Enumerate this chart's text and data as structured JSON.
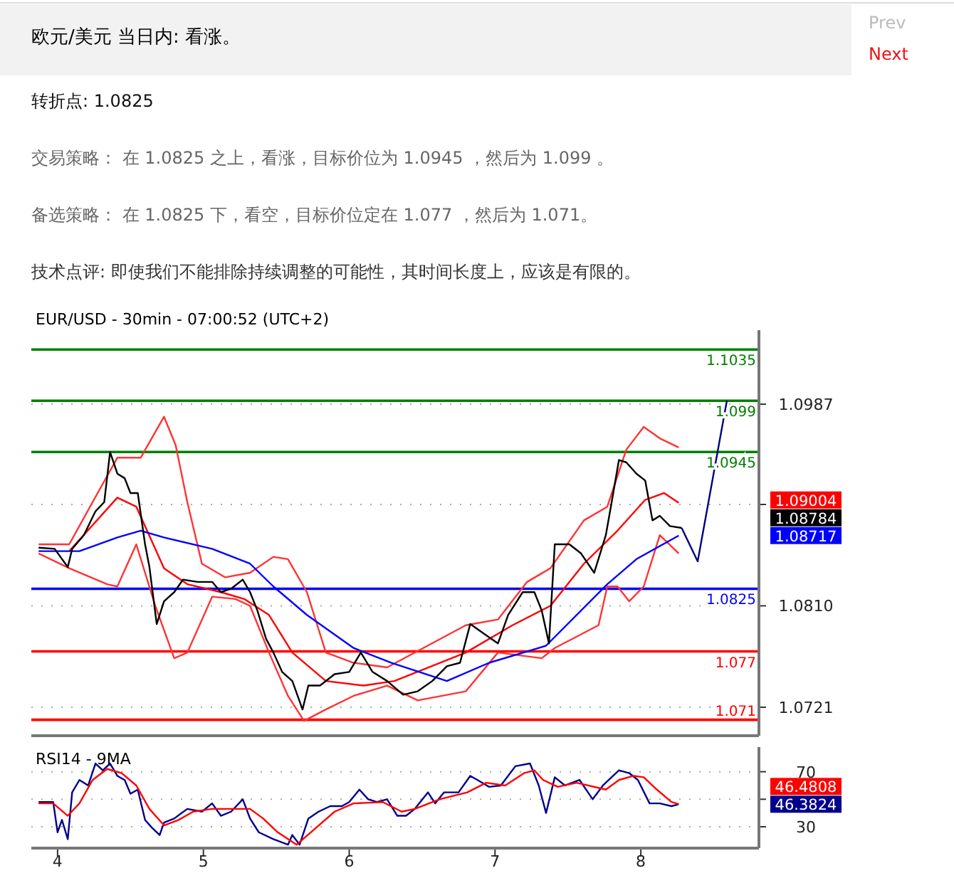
{
  "chart_data": [
    {
      "type": "other",
      "title": "欧元/美元 当日内: 看涨。",
      "annotations": [
        "Prev",
        "Next",
        "转折点: 1.0825",
        "交易策略： 在 1.0825 之上，看涨，目标价位为 1.0945 ，然后为 1.099 。",
        "备选策略： 在 1.0825 下，看空，目标价位定在 1.077 ，然后为 1.071。",
        "技术点评: 即使我们不能排除持续调整的可能性，其时间长度上，应该是有限的。"
      ]
    },
    {
      "type": "line",
      "title": "EUR/USD - 30min - 07:00:52 (UTC+2)",
      "xlim": [
        3.82,
        8.81
      ],
      "ylim": [
        1.0696,
        1.1052
      ],
      "yticks": [
        {
          "value": 1.0721,
          "label": "1.0721"
        },
        {
          "value": 1.081,
          "label": "1.0810"
        },
        {
          "value": 1.0899,
          "label": null
        },
        {
          "value": 1.0987,
          "label": "1.0987"
        }
      ],
      "tick_labels": "y",
      "grid": "y",
      "ref_lines": [
        {
          "axis": "y",
          "value": 1.1035,
          "label": "1.1035",
          "color": "#008000"
        },
        {
          "axis": "y",
          "value": 1.099,
          "label": "1.099",
          "color": "#008000"
        },
        {
          "axis": "y",
          "value": 1.0945,
          "label": "1.0945",
          "color": "#008000"
        },
        {
          "axis": "y",
          "value": 1.0825,
          "label": "1.0825",
          "color": "#0000ff"
        },
        {
          "axis": "y",
          "value": 1.077,
          "label": "1.077",
          "color": "#ff0000"
        },
        {
          "axis": "y",
          "value": 1.071,
          "label": "1.071",
          "color": "#ff0000"
        }
      ],
      "annotations": [
        "1.09004",
        "1.08784",
        "1.08717"
      ],
      "series": [
        {
          "color": "#ff3333",
          "x": [
            3.87,
            4.08,
            4.24,
            4.41,
            4.57,
            4.73,
            4.81,
            4.89,
            4.99,
            5.15,
            5.32,
            5.48,
            5.58,
            5.71,
            5.84,
            6.03,
            6.26,
            6.8,
            7.02,
            7.22,
            7.38,
            7.61,
            7.77,
            7.9,
            8.02,
            8.13,
            8.26
          ],
          "values": [
            1.0864,
            1.0864,
            1.0901,
            1.094,
            1.094,
            1.0976,
            1.0951,
            1.0901,
            1.0847,
            1.0835,
            1.0839,
            1.0853,
            1.0851,
            1.0822,
            1.0769,
            1.076,
            1.0756,
            1.0793,
            1.0798,
            1.0831,
            1.0843,
            1.0885,
            1.0897,
            1.0947,
            1.0967,
            1.0957,
            1.0949
          ]
        },
        {
          "color": "#ff3333",
          "x": [
            3.87,
            4.08,
            4.34,
            4.41,
            4.54,
            4.67,
            4.8,
            4.89,
            5.06,
            5.22,
            5.32,
            5.45,
            5.58,
            5.69,
            5.84,
            6.03,
            6.26,
            6.47,
            6.8,
            7.02,
            7.32,
            7.41,
            7.71,
            7.77,
            7.84,
            7.92,
            8.02,
            8.13,
            8.26
          ],
          "values": [
            1.0856,
            1.0843,
            1.0829,
            1.0827,
            1.0864,
            1.081,
            1.0764,
            1.0769,
            1.0818,
            1.0816,
            1.081,
            1.0769,
            1.0731,
            1.0709,
            1.0719,
            1.0731,
            1.074,
            1.0727,
            1.0735,
            1.0769,
            1.0764,
            1.0773,
            1.0793,
            1.0827,
            1.0827,
            1.0814,
            1.0827,
            1.0872,
            1.0856
          ]
        },
        {
          "color": "#ff0000",
          "x": [
            4.08,
            4.41,
            4.54,
            4.73,
            4.89,
            5.12,
            5.28,
            5.45,
            5.61,
            5.84,
            6.1,
            6.31,
            6.8,
            7.12,
            7.38,
            7.61,
            7.84,
            8.03,
            8.16,
            8.26
          ],
          "values": [
            1.0858,
            1.0905,
            1.0897,
            1.0843,
            1.0829,
            1.0822,
            1.0816,
            1.0802,
            1.0769,
            1.0744,
            1.074,
            1.0744,
            1.0769,
            1.0793,
            1.081,
            1.0847,
            1.0876,
            1.0903,
            1.0909,
            1.09004
          ]
        },
        {
          "color": "#0000ff",
          "x": [
            3.87,
            4.15,
            4.41,
            4.57,
            4.73,
            5.06,
            5.32,
            5.48,
            5.71,
            6.03,
            6.29,
            6.67,
            6.96,
            7.35,
            7.77,
            7.97,
            8.26
          ],
          "values": [
            1.0858,
            1.0858,
            1.087,
            1.0876,
            1.087,
            1.086,
            1.0847,
            1.0827,
            1.0802,
            1.0773,
            1.076,
            1.0744,
            1.076,
            1.0775,
            1.0829,
            1.0851,
            1.08717
          ]
        },
        {
          "color": "#000000",
          "x": [
            3.87,
            3.98,
            4.07,
            4.1,
            4.18,
            4.26,
            4.32,
            4.36,
            4.41,
            4.46,
            4.5,
            4.55,
            4.6,
            4.63,
            4.68,
            4.73,
            4.8,
            4.86,
            4.96,
            5.06,
            5.12,
            5.19,
            5.27,
            5.32,
            5.37,
            5.43,
            5.48,
            5.54,
            5.61,
            5.68,
            5.72,
            5.8,
            5.9,
            6.0,
            6.08,
            6.16,
            6.26,
            6.37,
            6.47,
            6.57,
            6.67,
            6.76,
            6.83,
            6.93,
            7.02,
            7.09,
            7.19,
            7.27,
            7.32,
            7.37,
            7.41,
            7.51,
            7.59,
            7.68,
            7.76,
            7.8,
            7.85,
            7.9,
            7.97,
            8.03,
            8.08,
            8.13,
            8.2,
            8.28
          ],
          "values": [
            1.0861,
            1.086,
            1.0844,
            1.086,
            1.0872,
            1.0893,
            1.0901,
            1.0945,
            1.0926,
            1.0922,
            1.0909,
            1.0909,
            1.0864,
            1.0844,
            1.0794,
            1.0814,
            1.0822,
            1.0833,
            1.0831,
            1.0831,
            1.0822,
            1.0825,
            1.0833,
            1.0822,
            1.0806,
            1.0781,
            1.0769,
            1.0752,
            1.0744,
            1.0719,
            1.074,
            1.074,
            1.075,
            1.0752,
            1.0769,
            1.0752,
            1.0744,
            1.0732,
            1.0735,
            1.0744,
            1.0757,
            1.076,
            1.0794,
            1.0785,
            1.0777,
            1.0802,
            1.0822,
            1.0822,
            1.0806,
            1.0777,
            1.0864,
            1.0864,
            1.0856,
            1.0839,
            1.0872,
            1.0901,
            1.0938,
            1.0936,
            1.0926,
            1.092,
            1.0885,
            1.0889,
            1.088,
            1.08784
          ]
        },
        {
          "color": "#000080",
          "x": [
            8.28,
            8.39,
            8.59
          ],
          "values": [
            1.08784,
            1.0849,
            1.099
          ]
        }
      ]
    },
    {
      "type": "line",
      "title": "RSI14 - 9MA",
      "xlim": [
        3.82,
        8.81
      ],
      "ylim": [
        14.5,
        87.9
      ],
      "xticks": [
        4,
        5,
        6,
        7,
        8
      ],
      "yticks": [
        30,
        {
          "value": 50,
          "label": null
        },
        70
      ],
      "grid": "y",
      "annotations": [
        "46.4808",
        "46.3824"
      ],
      "series": [
        {
          "color": "#00008b",
          "x": [
            3.87,
            3.97,
            4.0,
            4.03,
            4.07,
            4.1,
            4.15,
            4.21,
            4.26,
            4.31,
            4.36,
            4.41,
            4.46,
            4.5,
            4.55,
            4.6,
            4.65,
            4.7,
            4.73,
            4.8,
            4.89,
            4.99,
            5.06,
            5.12,
            5.19,
            5.27,
            5.32,
            5.38,
            5.48,
            5.58,
            5.61,
            5.66,
            5.72,
            5.79,
            5.87,
            5.95,
            6.0,
            6.07,
            6.13,
            6.19,
            6.26,
            6.33,
            6.39,
            6.45,
            6.54,
            6.59,
            6.65,
            6.75,
            6.83,
            6.88,
            6.96,
            7.04,
            7.14,
            7.24,
            7.3,
            7.35,
            7.41,
            7.48,
            7.58,
            7.67,
            7.74,
            7.85,
            7.92,
            7.98,
            8.06,
            8.13,
            8.21,
            8.26
          ],
          "values": [
            48,
            48,
            26,
            35,
            21,
            55,
            64,
            60,
            76,
            71,
            76,
            67,
            64,
            54,
            57,
            35,
            29,
            24,
            33,
            36,
            43,
            41,
            47,
            38,
            41,
            50,
            36,
            26,
            21,
            17,
            24,
            17,
            36,
            41,
            45,
            45,
            48,
            57,
            50,
            48,
            50,
            38,
            38,
            43,
            55,
            47,
            55,
            55,
            67,
            64,
            59,
            60,
            74,
            76,
            60,
            40,
            66,
            60,
            64,
            50,
            60,
            71,
            69,
            64,
            47,
            47,
            45,
            46.3824
          ]
        },
        {
          "color": "#ff0000",
          "x": [
            3.87,
            3.97,
            4.07,
            4.15,
            4.24,
            4.34,
            4.44,
            4.54,
            4.63,
            4.73,
            4.83,
            4.93,
            5.06,
            5.19,
            5.32,
            5.41,
            5.51,
            5.64,
            5.77,
            5.9,
            6.03,
            6.23,
            6.36,
            6.45,
            6.62,
            6.81,
            6.94,
            7.07,
            7.2,
            7.27,
            7.33,
            7.43,
            7.56,
            7.76,
            7.85,
            7.95,
            8.02,
            8.11,
            8.21,
            8.26
          ],
          "values": [
            47,
            47,
            38,
            47,
            64,
            72,
            69,
            60,
            43,
            31,
            35,
            41,
            43,
            43,
            43,
            36,
            26,
            17,
            29,
            41,
            47,
            48,
            41,
            43,
            50,
            55,
            62,
            60,
            69,
            71,
            64,
            59,
            62,
            57,
            64,
            67,
            66,
            57,
            48,
            46.4808
          ]
        }
      ]
    }
  ]
}
